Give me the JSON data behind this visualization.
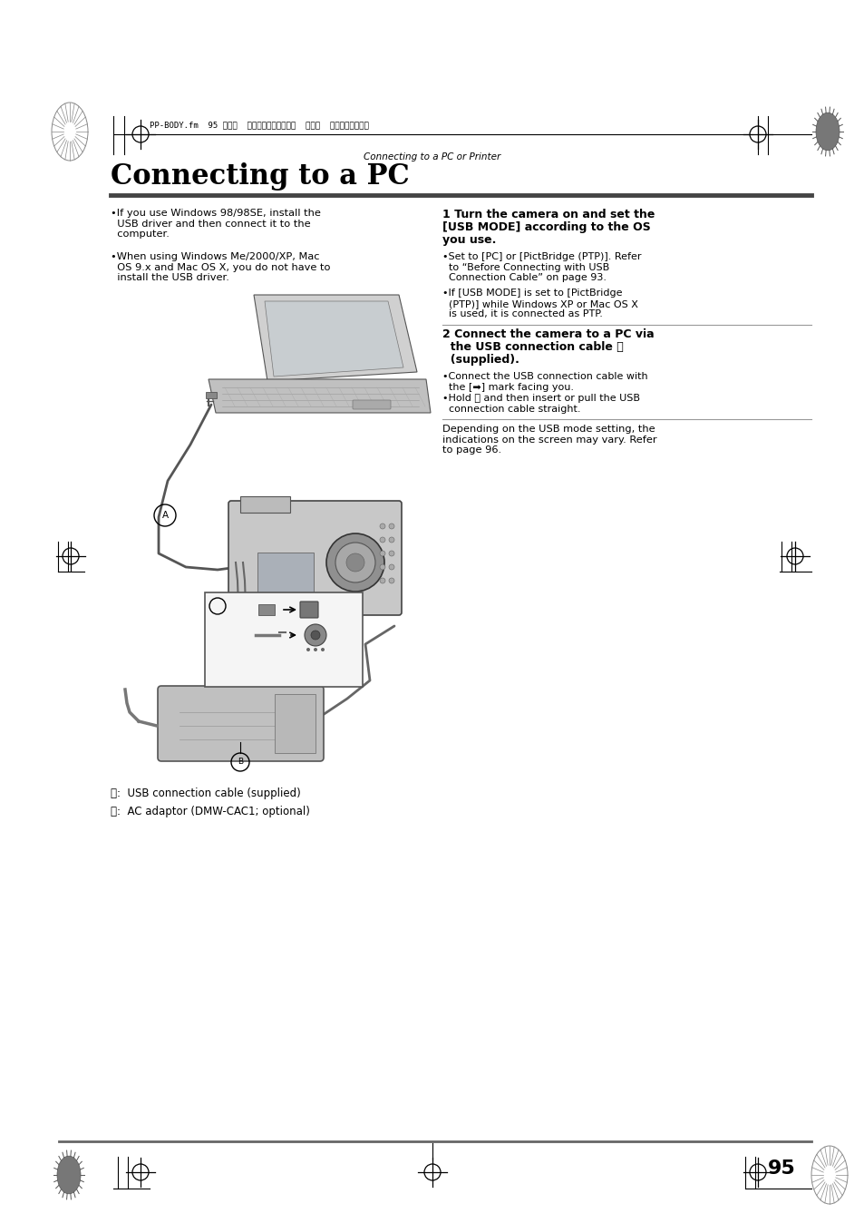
{
  "bg_color": "#ffffff",
  "page_width": 9.54,
  "page_height": 13.48,
  "header_text": "PP-BODY.fm  95 ページ  ２００４年６月２３日  水曜日  午前１０時５２分",
  "section_label": "Connecting to a PC or Printer",
  "title": "Connecting to a PC",
  "bullet1": "•If you use Windows 98/98SE, install the\n  USB driver and then connect it to the\n  computer.",
  "bullet2": "•When using Windows Me/2000/XP, Mac\n  OS 9.x and Mac OS X, you do not have to\n  install the USB driver.",
  "step1_line1": "1 Turn the camera on and set the",
  "step1_line2": "[USB MODE] according to the OS",
  "step1_line3": "you use.",
  "step1_b1": "•Set to [PC] or [PictBridge (PTP)]. Refer\n  to “Before Connecting with USB\n  Connection Cable” on page 93.",
  "step1_b2": "•If [USB MODE] is set to [PictBridge\n  (PTP)] while Windows XP or Mac OS X\n  is used, it is connected as PTP.",
  "step2_line1": "2 Connect the camera to a PC via",
  "step2_line2": "  the USB connection cable Ⓐ",
  "step2_line3": "  (supplied).",
  "step2_b1": "•Connect the USB connection cable with\n  the [➡] mark facing you.",
  "step2_b2": "•Hold Ⓒ and then insert or pull the USB\n  connection cable straight.",
  "footer": "Depending on the USB mode setting, the\nindications on the screen may vary. Refer\nto page 96.",
  "caption_A": "Ⓐ:  USB connection cable (supplied)",
  "caption_B": "Ⓑ:  AC adaptor (DMW-CAC1; optional)",
  "page_number": "95"
}
